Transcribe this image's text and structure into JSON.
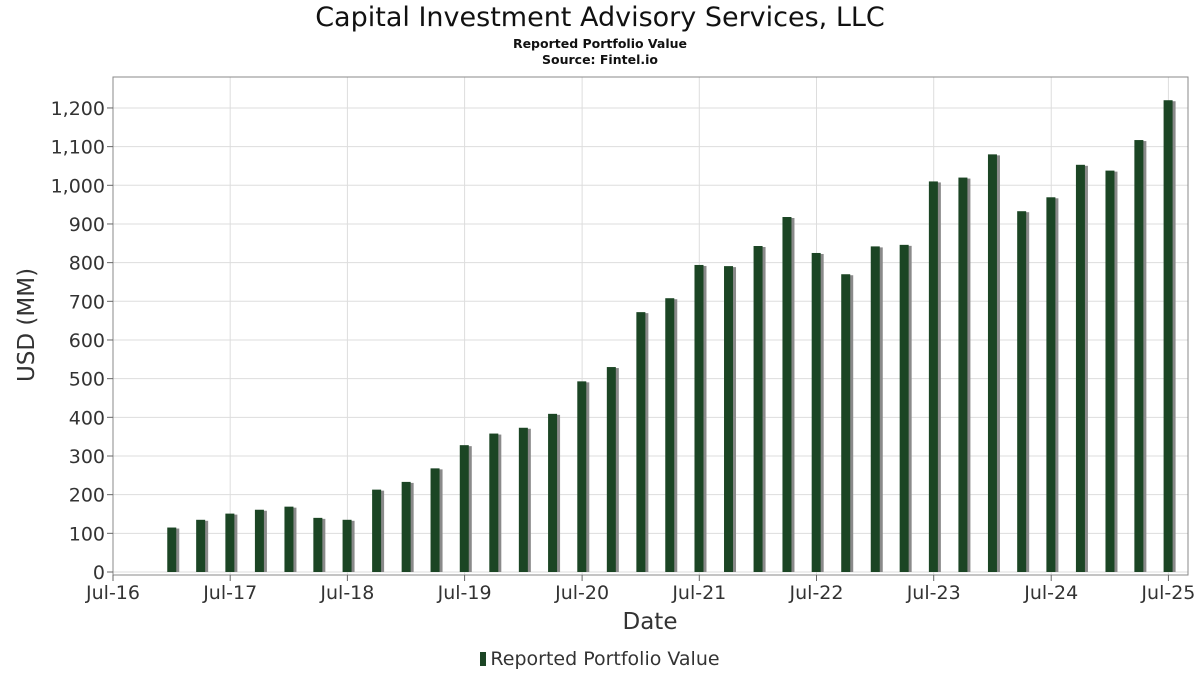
{
  "header": {
    "title": "Capital Investment Advisory Services, LLC",
    "subtitle": "Reported Portfolio Value",
    "source": "Source: Fintel.io"
  },
  "colors": {
    "bar": "#1b4524",
    "bar_shadow": "#8a8a8a",
    "grid": "#dddddd",
    "frame": "#888888"
  },
  "chart_data": {
    "type": "bar",
    "title": "Capital Investment Advisory Services, LLC",
    "xlabel": "Date",
    "ylabel": "USD (MM)",
    "grid": true,
    "legend_position": "bottom-center",
    "xlim": [
      "2016-07-01",
      "2025-08-31"
    ],
    "ylim": [
      0,
      1280
    ],
    "x_ticks": [
      "Jul-16",
      "Jul-17",
      "Jul-18",
      "Jul-19",
      "Jul-20",
      "Jul-21",
      "Jul-22",
      "Jul-23",
      "Jul-24",
      "Jul-25"
    ],
    "y_ticks": [
      "0",
      "100",
      "200",
      "300",
      "400",
      "500",
      "600",
      "700",
      "800",
      "900",
      "1,000",
      "1,100",
      "1,200"
    ],
    "series": [
      {
        "name": "Reported Portfolio Value",
        "x": [
          "2016-12-31",
          "2017-03-31",
          "2017-06-30",
          "2017-09-30",
          "2017-12-31",
          "2018-03-31",
          "2018-06-30",
          "2018-09-30",
          "2018-12-31",
          "2019-03-31",
          "2019-06-30",
          "2019-09-30",
          "2019-12-31",
          "2020-03-31",
          "2020-06-30",
          "2020-09-30",
          "2020-12-31",
          "2021-03-31",
          "2021-06-30",
          "2021-09-30",
          "2021-12-31",
          "2022-03-31",
          "2022-06-30",
          "2022-09-30",
          "2022-12-31",
          "2023-03-31",
          "2023-06-30",
          "2023-09-30",
          "2023-12-31",
          "2024-03-31",
          "2024-06-30",
          "2024-09-30",
          "2024-12-31",
          "2025-03-31",
          "2025-06-30"
        ],
        "values": [
          115,
          135,
          151,
          161,
          169,
          140,
          135,
          213,
          233,
          268,
          328,
          358,
          373,
          409,
          493,
          530,
          672,
          708,
          794,
          791,
          843,
          918,
          825,
          770,
          842,
          846,
          1010,
          1020,
          1080,
          933,
          969,
          1053,
          1038,
          1117,
          1220
        ]
      }
    ]
  }
}
